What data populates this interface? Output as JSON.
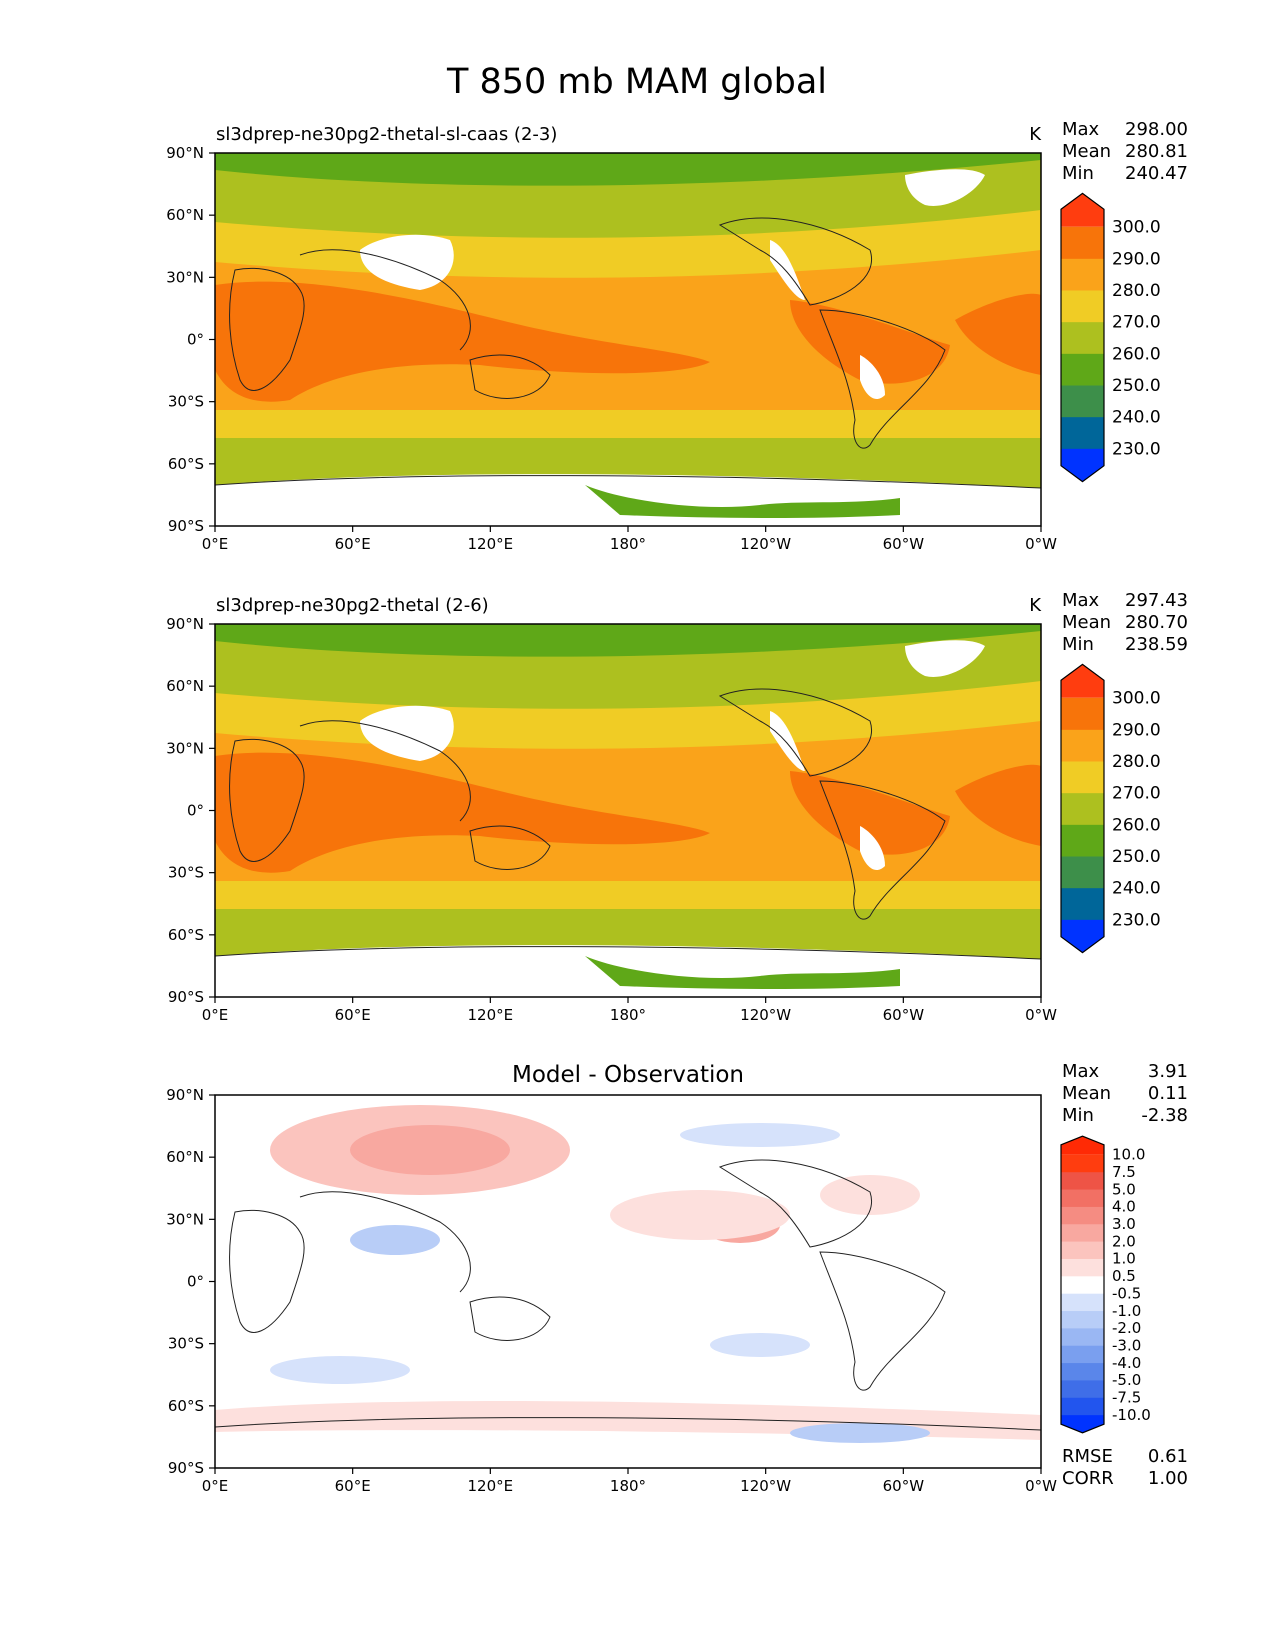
{
  "figure": {
    "title": "T 850 mb MAM global"
  },
  "chart_data": [
    {
      "type": "heatmap",
      "title": "",
      "subtitle": "sl3dprep-ne30pg2-thetal-sl-caas (2-3)",
      "units": "K",
      "stats": [
        {
          "label": "Max",
          "value": "298.00"
        },
        {
          "label": "Mean",
          "value": "280.81"
        },
        {
          "label": "Min",
          "value": "240.47"
        }
      ],
      "colorbar": {
        "labels": [
          "300.0",
          "290.0",
          "280.0",
          "270.0",
          "260.0",
          "250.0",
          "240.0",
          "230.0"
        ],
        "colors": [
          "#0033ff",
          "#006699",
          "#3d8f4a",
          "#5fa818",
          "#adc01f",
          "#f0cc25",
          "#faa31a",
          "#f7740a",
          "#ff3d0f"
        ]
      },
      "x_ticks": [
        "0°E",
        "60°E",
        "120°E",
        "180°",
        "120°W",
        "60°W",
        "0°W"
      ],
      "y_ticks": [
        "90°N",
        "60°N",
        "30°N",
        "0°",
        "30°S",
        "60°S",
        "90°S"
      ],
      "xlim": [
        0,
        360
      ],
      "ylim": [
        -90,
        90
      ]
    },
    {
      "type": "heatmap",
      "title": "",
      "subtitle": "sl3dprep-ne30pg2-thetal (2-6)",
      "units": "K",
      "stats": [
        {
          "label": "Max",
          "value": "297.43"
        },
        {
          "label": "Mean",
          "value": "280.70"
        },
        {
          "label": "Min",
          "value": "238.59"
        }
      ],
      "colorbar": {
        "labels": [
          "300.0",
          "290.0",
          "280.0",
          "270.0",
          "260.0",
          "250.0",
          "240.0",
          "230.0"
        ],
        "colors": [
          "#0033ff",
          "#006699",
          "#3d8f4a",
          "#5fa818",
          "#adc01f",
          "#f0cc25",
          "#faa31a",
          "#f7740a",
          "#ff3d0f"
        ]
      },
      "x_ticks": [
        "0°E",
        "60°E",
        "120°E",
        "180°",
        "120°W",
        "60°W",
        "0°W"
      ],
      "y_ticks": [
        "90°N",
        "60°N",
        "30°N",
        "0°",
        "30°S",
        "60°S",
        "90°S"
      ],
      "xlim": [
        0,
        360
      ],
      "ylim": [
        -90,
        90
      ]
    },
    {
      "type": "heatmap",
      "title": "Model - Observation",
      "subtitle": "",
      "units": "",
      "stats": [
        {
          "label": "Max",
          "value": "3.91"
        },
        {
          "label": "Mean",
          "value": "0.11"
        },
        {
          "label": "Min",
          "value": "-2.38"
        }
      ],
      "metrics": [
        {
          "label": "RMSE",
          "value": "0.61"
        },
        {
          "label": "CORR",
          "value": "1.00"
        }
      ],
      "colorbar": {
        "labels": [
          "10.0",
          "7.5",
          "5.0",
          "4.0",
          "3.0",
          "2.0",
          "1.0",
          "0.5",
          "-0.5",
          "-1.0",
          "-2.0",
          "-3.0",
          "-4.0",
          "-5.0",
          "-7.5",
          "-10.0"
        ],
        "colors": [
          "#0033ff",
          "#2255ee",
          "#3f6ee8",
          "#5a86ea",
          "#7a9fef",
          "#9ab7f3",
          "#b8cdf7",
          "#d6e2fb",
          "#ffffff",
          "#fde0dd",
          "#fbc4be",
          "#f8a8a0",
          "#f58c82",
          "#f27064",
          "#ee5446",
          "#ff3d0f",
          "#ff2a05"
        ]
      },
      "x_ticks": [
        "0°E",
        "60°E",
        "120°E",
        "180°",
        "120°W",
        "60°W",
        "0°W"
      ],
      "y_ticks": [
        "90°N",
        "60°N",
        "30°N",
        "0°",
        "30°S",
        "60°S",
        "90°S"
      ],
      "xlim": [
        0,
        360
      ],
      "ylim": [
        -90,
        90
      ]
    }
  ]
}
